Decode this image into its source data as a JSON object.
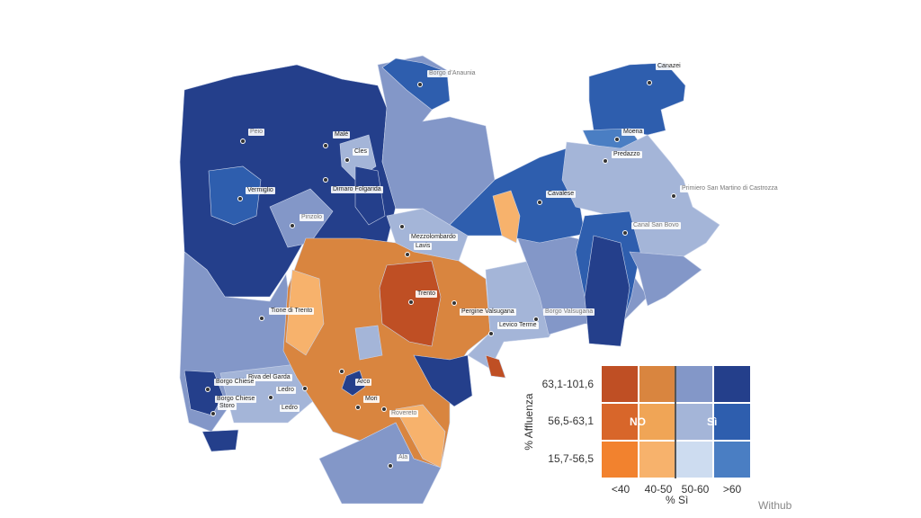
{
  "towns": [
    {
      "name": "Borgo d'Anaunia"
    },
    {
      "name": "Peio"
    },
    {
      "name": "Malè"
    },
    {
      "name": "Cles"
    },
    {
      "name": "Dimaro Folgarida"
    },
    {
      "name": "Vermiglio"
    },
    {
      "name": "Pinzolo"
    },
    {
      "name": "Mezzolombardo"
    },
    {
      "name": "Lavis"
    },
    {
      "name": "Trento"
    },
    {
      "name": "Pergine Valsugana"
    },
    {
      "name": "Levico Terme"
    },
    {
      "name": "Borgo Valsugana"
    },
    {
      "name": "Tione di Trento"
    },
    {
      "name": "Riva del Garda"
    },
    {
      "name": "Borgo Chiese"
    },
    {
      "name": "Borgo Chiese"
    },
    {
      "name": "Storo"
    },
    {
      "name": "Ledro"
    },
    {
      "name": "Ledro"
    },
    {
      "name": "Arco"
    },
    {
      "name": "Mori"
    },
    {
      "name": "Rovereto"
    },
    {
      "name": "Ala"
    },
    {
      "name": "Canazei"
    },
    {
      "name": "Moena"
    },
    {
      "name": "Predazzo"
    },
    {
      "name": "Cavalese"
    },
    {
      "name": "Primiero San Martino di Castrozza"
    },
    {
      "name": "Canal San Bovo"
    }
  ],
  "legend": {
    "y_axis_label": "% Affluenza",
    "x_axis_label": "% Sì",
    "rows": [
      "63,1-101,6",
      "56,5-63,1",
      "15,7-56,5"
    ],
    "cols": [
      "<40",
      "40-50",
      "50-60",
      ">60"
    ],
    "no_label": "NO",
    "si_label": "Sì",
    "colors": [
      [
        "#bf4f24",
        "#d9853f",
        "#8397c8",
        "#243f8b"
      ],
      [
        "#d8662a",
        "#f0a556",
        "#a4b5d8",
        "#2e5eae"
      ],
      [
        "#f2822e",
        "#f7b26c",
        "#cddcf0",
        "#4a7ec3"
      ]
    ]
  },
  "credit": "Withub"
}
